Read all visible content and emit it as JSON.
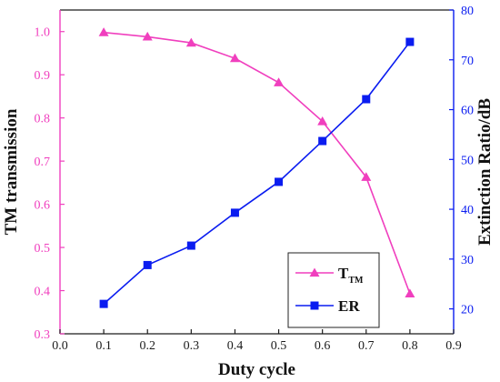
{
  "chart_data": {
    "type": "line",
    "xlabel": "Duty cycle",
    "ylabel_left": "TM transmission",
    "ylabel_right": "Extinction Ratio/dB",
    "xlim": [
      0.0,
      0.9
    ],
    "ylim_left": [
      0.3,
      1.05
    ],
    "ylim_right": [
      15,
      80
    ],
    "x_ticks": [
      "0.0",
      "0.1",
      "0.2",
      "0.3",
      "0.4",
      "0.5",
      "0.6",
      "0.7",
      "0.8",
      "0.9"
    ],
    "y_ticks_left": [
      "0.3",
      "0.4",
      "0.5",
      "0.6",
      "0.7",
      "0.8",
      "0.9",
      "1.0"
    ],
    "y_ticks_right": [
      "20",
      "30",
      "40",
      "50",
      "60",
      "70",
      "80"
    ],
    "grid": false,
    "legend_position": "bottom-right",
    "x": [
      0.1,
      0.2,
      0.3,
      0.4,
      0.5,
      0.6,
      0.7,
      0.8
    ],
    "series": [
      {
        "name": "T",
        "name_sub": "TM",
        "axis": "left",
        "marker": "triangle",
        "color": "#f03fbe",
        "values": [
          0.998,
          0.988,
          0.974,
          0.938,
          0.882,
          0.792,
          0.663,
          0.393
        ]
      },
      {
        "name": "ER",
        "axis": "right",
        "marker": "square",
        "color": "#0a1cf0",
        "values": [
          21.0,
          28.8,
          32.7,
          39.3,
          45.5,
          53.7,
          62.1,
          73.6
        ]
      }
    ]
  }
}
